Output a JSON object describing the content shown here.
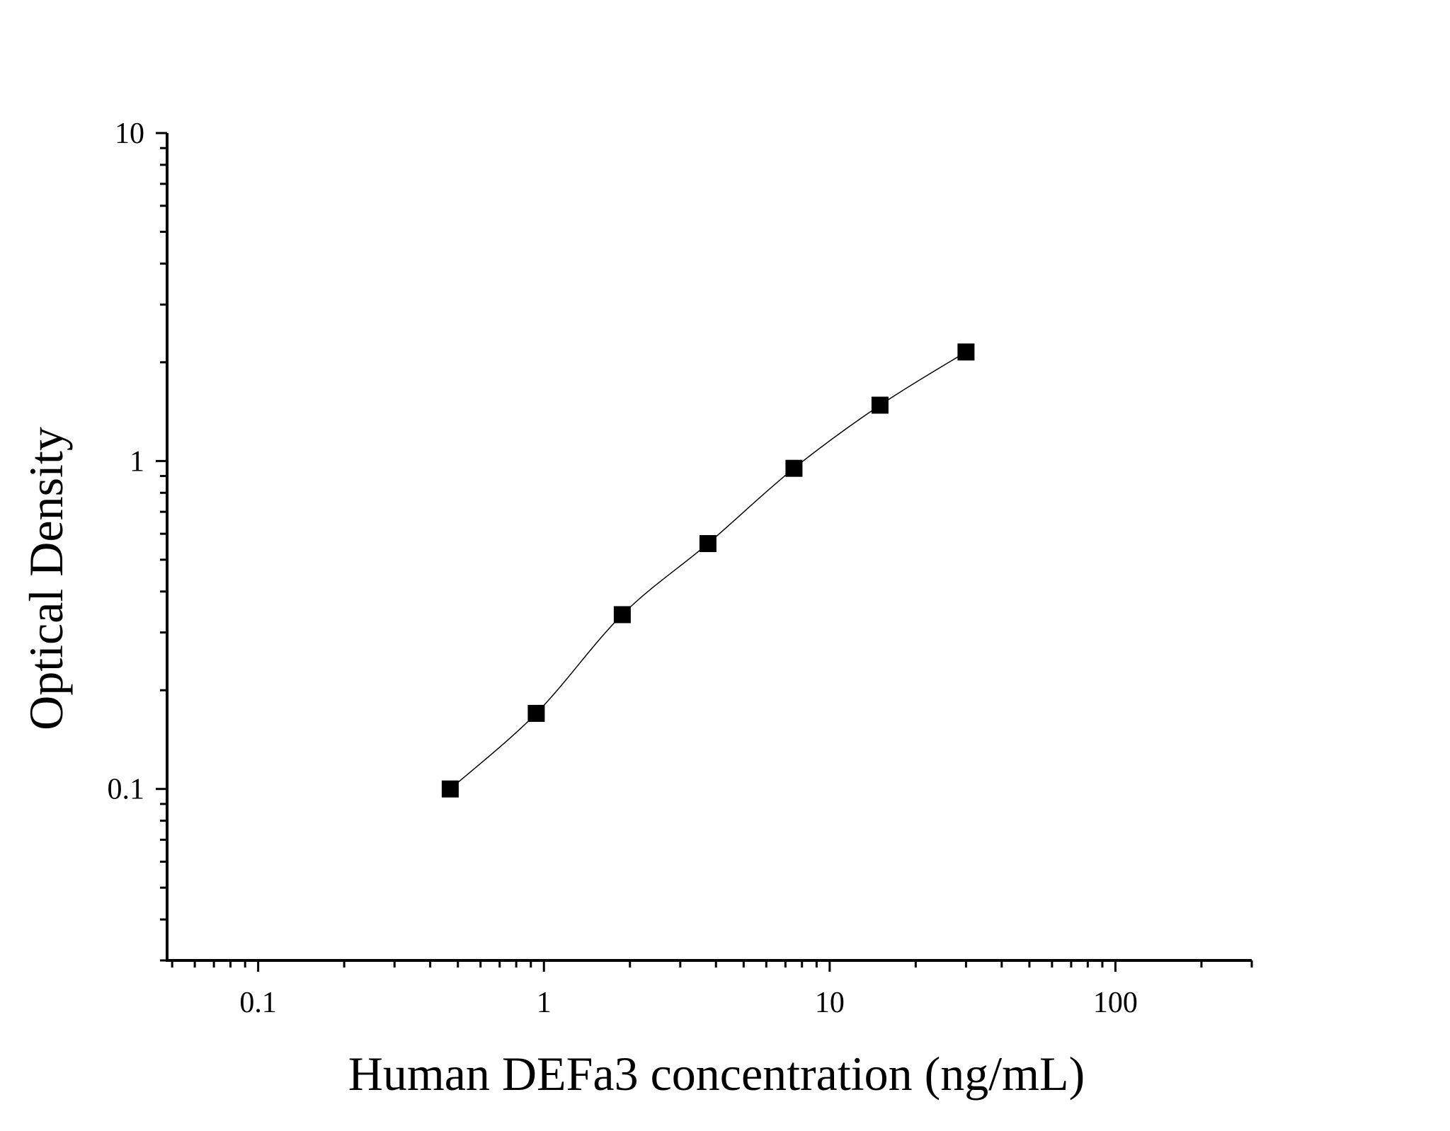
{
  "chart_data": {
    "type": "scatter",
    "xlabel": "Human DEFa3 concentration (ng/mL)",
    "ylabel": "Optical Density",
    "xscale": "log",
    "yscale": "log",
    "xlim": [
      0.048,
      300
    ],
    "ylim": [
      0.03,
      10
    ],
    "grid": false,
    "x_ticks": [
      {
        "value": 0.1,
        "label": "0.1"
      },
      {
        "value": 1,
        "label": "1"
      },
      {
        "value": 10,
        "label": "10"
      },
      {
        "value": 100,
        "label": "100"
      }
    ],
    "y_ticks": [
      {
        "value": 0.1,
        "label": "0.1"
      },
      {
        "value": 1,
        "label": "1"
      },
      {
        "value": 10,
        "label": "10"
      }
    ],
    "series": [
      {
        "marker": "square",
        "color": "#000000",
        "x": [
          0.47,
          0.94,
          1.88,
          3.75,
          7.5,
          15,
          30
        ],
        "y": [
          0.1,
          0.17,
          0.34,
          0.56,
          0.95,
          1.48,
          2.15
        ]
      }
    ],
    "fit_curve": true
  }
}
